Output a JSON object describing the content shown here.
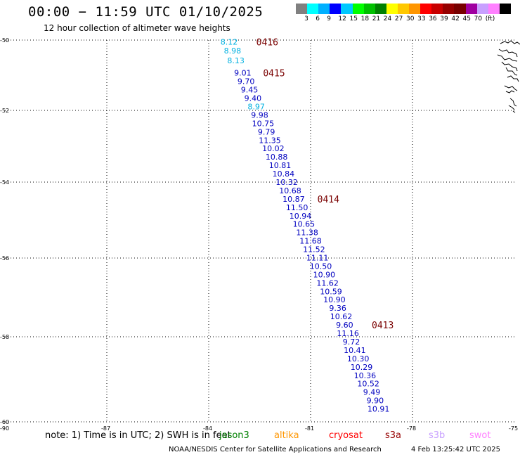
{
  "header": {
    "title": "00:00 − 11:59 UTC 01/10/2025",
    "subtitle": "12 hour collection of altimeter wave heights"
  },
  "color_scale": {
    "colors": [
      "#808080",
      "#00ffff",
      "#00b0ff",
      "#0000ff",
      "#00c8ff",
      "#00ff00",
      "#00c000",
      "#008000",
      "#ffff00",
      "#ffc800",
      "#ff9600",
      "#ff0000",
      "#c80000",
      "#960000",
      "#780000",
      "#a000a0",
      "#c8a0ff",
      "#ff80ff",
      "#000000"
    ],
    "labels": [
      "3",
      "6",
      "9",
      "12",
      "15",
      "18",
      "21",
      "24",
      "27",
      "30",
      "33",
      "36",
      "39",
      "42",
      "45",
      "70",
      "(ft)"
    ]
  },
  "chart_data": {
    "type": "scatter",
    "xlim": [
      -90,
      -75
    ],
    "ylim": [
      -60,
      -50
    ],
    "x_ticks": [
      "-90",
      "-87",
      "-84",
      "-81",
      "-78",
      "-75"
    ],
    "y_ticks": [
      "-50",
      "-52",
      "-54",
      "-56",
      "-58",
      "-60"
    ],
    "grid": true,
    "points": [
      {
        "lon": -83.4,
        "lat": -50.05,
        "value": "8.12",
        "color": "#00b0e0"
      },
      {
        "lon": -83.3,
        "lat": -50.28,
        "value": "8.98",
        "color": "#00b0e0"
      },
      {
        "lon": -83.2,
        "lat": -50.53,
        "value": "8.13",
        "color": "#00b0e0"
      },
      {
        "lon": -83.0,
        "lat": -50.86,
        "value": "9.01",
        "color": "#0000c0"
      },
      {
        "lon": -82.9,
        "lat": -51.08,
        "value": "9.70",
        "color": "#0000c0"
      },
      {
        "lon": -82.8,
        "lat": -51.3,
        "value": "9.45",
        "color": "#0000c0"
      },
      {
        "lon": -82.7,
        "lat": -51.52,
        "value": "9.40",
        "color": "#0000c0"
      },
      {
        "lon": -82.6,
        "lat": -51.74,
        "value": "8.97",
        "color": "#00b0e0"
      },
      {
        "lon": -82.5,
        "lat": -51.96,
        "value": "9.98",
        "color": "#0000c0"
      },
      {
        "lon": -82.4,
        "lat": -52.18,
        "value": "10.75",
        "color": "#0000c0"
      },
      {
        "lon": -82.3,
        "lat": -52.4,
        "value": "9.79",
        "color": "#0000c0"
      },
      {
        "lon": -82.2,
        "lat": -52.62,
        "value": "11.35",
        "color": "#0000c0"
      },
      {
        "lon": -82.1,
        "lat": -52.84,
        "value": "10.02",
        "color": "#0000c0"
      },
      {
        "lon": -82.0,
        "lat": -53.06,
        "value": "10.88",
        "color": "#0000c0"
      },
      {
        "lon": -81.9,
        "lat": -53.28,
        "value": "10.81",
        "color": "#0000c0"
      },
      {
        "lon": -81.8,
        "lat": -53.5,
        "value": "10.84",
        "color": "#0000c0"
      },
      {
        "lon": -81.7,
        "lat": -53.72,
        "value": "10.32",
        "color": "#0000c0"
      },
      {
        "lon": -81.6,
        "lat": -53.94,
        "value": "10.68",
        "color": "#0000c0"
      },
      {
        "lon": -81.5,
        "lat": -54.16,
        "value": "10.87",
        "color": "#0000c0"
      },
      {
        "lon": -81.4,
        "lat": -54.38,
        "value": "11.50",
        "color": "#0000c0"
      },
      {
        "lon": -81.3,
        "lat": -54.6,
        "value": "10.94",
        "color": "#0000c0"
      },
      {
        "lon": -81.2,
        "lat": -54.82,
        "value": "10.65",
        "color": "#0000c0"
      },
      {
        "lon": -81.1,
        "lat": -55.04,
        "value": "11.38",
        "color": "#0000c0"
      },
      {
        "lon": -81.0,
        "lat": -55.26,
        "value": "11.68",
        "color": "#0000c0"
      },
      {
        "lon": -80.9,
        "lat": -55.48,
        "value": "11.52",
        "color": "#0000c0"
      },
      {
        "lon": -80.8,
        "lat": -55.7,
        "value": "11.11",
        "color": "#0000c0"
      },
      {
        "lon": -80.7,
        "lat": -55.92,
        "value": "10.50",
        "color": "#0000c0"
      },
      {
        "lon": -80.6,
        "lat": -56.14,
        "value": "10.90",
        "color": "#0000c0"
      },
      {
        "lon": -80.5,
        "lat": -56.36,
        "value": "11.62",
        "color": "#0000c0"
      },
      {
        "lon": -80.4,
        "lat": -56.58,
        "value": "10.59",
        "color": "#0000c0"
      },
      {
        "lon": -80.3,
        "lat": -56.8,
        "value": "10.90",
        "color": "#0000c0"
      },
      {
        "lon": -80.2,
        "lat": -57.02,
        "value": "9.36",
        "color": "#0000c0"
      },
      {
        "lon": -80.1,
        "lat": -57.24,
        "value": "10.62",
        "color": "#0000c0"
      },
      {
        "lon": -80.0,
        "lat": -57.46,
        "value": "9.60",
        "color": "#0000c0"
      },
      {
        "lon": -79.9,
        "lat": -57.68,
        "value": "11.16",
        "color": "#0000c0"
      },
      {
        "lon": -79.8,
        "lat": -57.9,
        "value": "9.72",
        "color": "#0000c0"
      },
      {
        "lon": -79.7,
        "lat": -58.12,
        "value": "10.41",
        "color": "#0000c0"
      },
      {
        "lon": -79.6,
        "lat": -58.34,
        "value": "10.30",
        "color": "#0000c0"
      },
      {
        "lon": -79.5,
        "lat": -58.56,
        "value": "10.29",
        "color": "#0000c0"
      },
      {
        "lon": -79.4,
        "lat": -58.78,
        "value": "10.36",
        "color": "#0000c0"
      },
      {
        "lon": -79.3,
        "lat": -59.0,
        "value": "10.52",
        "color": "#0000c0"
      },
      {
        "lon": -79.2,
        "lat": -59.22,
        "value": "9.49",
        "color": "#0000c0"
      },
      {
        "lon": -79.1,
        "lat": -59.44,
        "value": "9.90",
        "color": "#0000c0"
      },
      {
        "lon": -79.0,
        "lat": -59.66,
        "value": "10.91",
        "color": "#0000c0"
      }
    ],
    "pass_labels": [
      {
        "lon": -82.6,
        "lat": -50.05,
        "text": "0416"
      },
      {
        "lon": -82.4,
        "lat": -50.86,
        "text": "0415"
      },
      {
        "lon": -80.8,
        "lat": -54.16,
        "text": "0414"
      },
      {
        "lon": -79.2,
        "lat": -57.46,
        "text": "0413"
      }
    ]
  },
  "footer": {
    "note": "note: 1) Time is in UTC; 2) SWH is in feet",
    "satellites": [
      {
        "name": "jason3",
        "color": "#008000"
      },
      {
        "name": "altika",
        "color": "#ff9600"
      },
      {
        "name": "cryosat",
        "color": "#ff0000"
      },
      {
        "name": "s3a",
        "color": "#960000"
      },
      {
        "name": "s3b",
        "color": "#c8a0ff"
      },
      {
        "name": "swot",
        "color": "#ff80ff"
      }
    ],
    "credit": "NOAA/NESDIS Center for Satellite Applications and Research",
    "timestamp": "4 Feb 13:25:42 UTC 2025"
  }
}
